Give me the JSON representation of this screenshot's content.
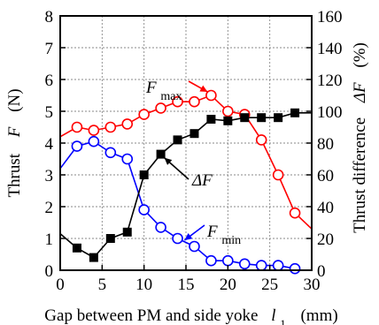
{
  "chart_data": {
    "type": "line",
    "title": "",
    "xlabel": "Gap between PM and side yoke",
    "xlabel_symbol": "l",
    "xlabel_subscript": "1",
    "xlabel_unit": "(mm)",
    "ylabel_left": "Thrust",
    "ylabel_left_symbol": "F",
    "ylabel_left_unit": "(N)",
    "ylabel_right": "Thrust difference",
    "ylabel_right_symbol": "ΔF",
    "ylabel_right_unit": "(%)",
    "xlim": [
      0,
      30
    ],
    "ylim_left": [
      0,
      8
    ],
    "ylim_right": [
      0,
      160
    ],
    "x_ticks": [
      "0",
      "5",
      "10",
      "15",
      "20",
      "25",
      "30"
    ],
    "y_left_ticks": [
      "0",
      "1",
      "2",
      "3",
      "4",
      "5",
      "6",
      "7",
      "8"
    ],
    "y_right_ticks": [
      "0",
      "20",
      "40",
      "60",
      "80",
      "100",
      "120",
      "140",
      "160"
    ],
    "grid": true,
    "series": [
      {
        "name": "F",
        "name_subscript": "max",
        "axis": "left",
        "color": "#ff0000",
        "marker": "open-circle",
        "x": [
          0,
          2,
          4,
          6,
          8,
          10,
          12,
          14,
          16,
          18,
          20,
          22,
          24,
          26,
          28,
          30
        ],
        "y": [
          4.2,
          4.5,
          4.4,
          4.5,
          4.6,
          4.9,
          5.1,
          5.3,
          5.3,
          5.5,
          5.0,
          4.9,
          4.1,
          3.0,
          1.8,
          1.3
        ]
      },
      {
        "name": "F",
        "name_subscript": "min",
        "axis": "left",
        "color": "#0000ff",
        "marker": "open-circle",
        "x": [
          0,
          2,
          4,
          6,
          8,
          10,
          12,
          14,
          16,
          18,
          20,
          22,
          24,
          26,
          28
        ],
        "y": [
          3.2,
          3.9,
          4.05,
          3.7,
          3.5,
          1.9,
          1.35,
          1.0,
          0.75,
          0.3,
          0.3,
          0.2,
          0.15,
          0.15,
          0.05
        ]
      },
      {
        "name": "ΔF",
        "axis": "right",
        "color": "#000000",
        "marker": "filled-square",
        "x": [
          0,
          2,
          4,
          6,
          8,
          10,
          12,
          14,
          16,
          18,
          20,
          22,
          24,
          26,
          28,
          30
        ],
        "y": [
          23,
          14,
          8,
          20,
          24,
          60,
          73,
          82,
          86,
          95,
          94,
          96,
          96,
          96,
          99,
          99
        ]
      }
    ],
    "annotations": [
      {
        "text": "F",
        "subscript": "max",
        "series": "F_max"
      },
      {
        "text": "ΔF",
        "subscript": "",
        "series": "dF"
      },
      {
        "text": "F",
        "subscript": "min",
        "series": "F_min"
      }
    ]
  }
}
